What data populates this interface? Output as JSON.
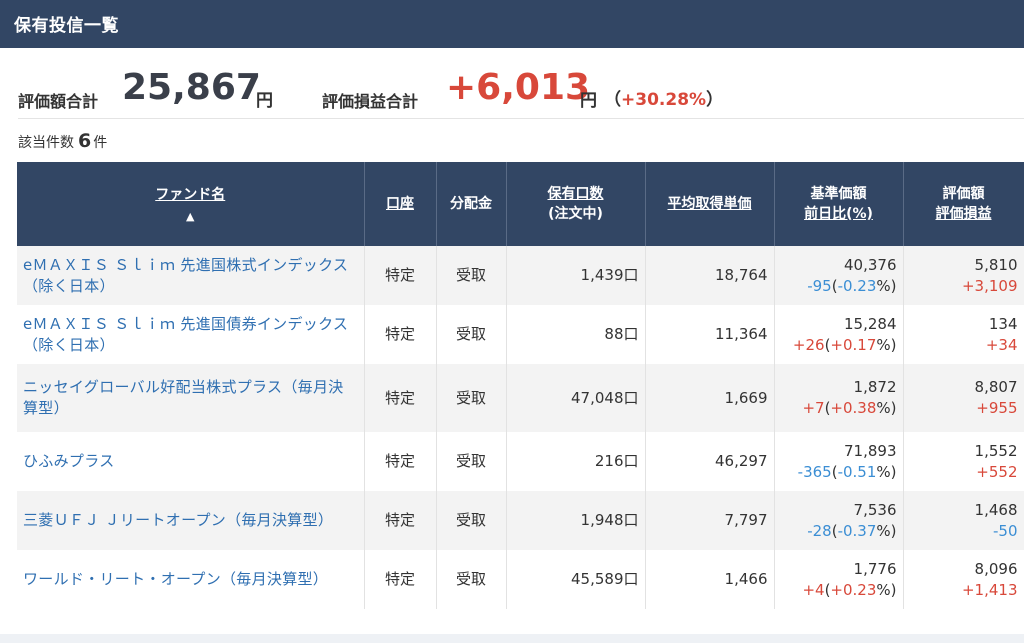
{
  "header": {
    "title": "保有投信一覧"
  },
  "summary": {
    "valuation_label": "評価額合計",
    "valuation_value": "25,867",
    "valuation_unit": "円",
    "pl_label": "評価損益合計",
    "pl_value": "+6,013",
    "pl_unit": "円",
    "pl_pct_open": "（",
    "pl_pct": "+30.28%",
    "pl_pct_close": "）"
  },
  "count": {
    "label": "該当件数",
    "value": "6",
    "unit": "件"
  },
  "table": {
    "headers": {
      "fund_name": "ファンド名",
      "sort_indicator": "▲",
      "account": "口座",
      "distribution": "分配金",
      "units_1": "保有口数",
      "units_2": "(注文中)",
      "avg_cost": "平均取得単価",
      "nav_1": "基準価額",
      "nav_2": "前日比(%)",
      "val_1": "評価額",
      "val_2": "評価損益"
    },
    "rows": [
      {
        "name": "eＭＡＸＩＳ Ｓｌｉｍ 先進国株式インデックス（除く日本）",
        "account": "特定",
        "distribution": "受取",
        "units": "1,439口",
        "avg_cost": "18,764",
        "nav": "40,376",
        "nav_change": "-95",
        "nav_pct_open": "(",
        "nav_pct": "-0.23",
        "nav_pct_close": "%)",
        "valuation": "5,810",
        "pl": "+3,109",
        "change_sign": "neg",
        "pl_sign": "pos"
      },
      {
        "name": "eＭＡＸＩＳ Ｓｌｉｍ 先進国債券インデックス（除く日本）",
        "account": "特定",
        "distribution": "受取",
        "units": "88口",
        "avg_cost": "11,364",
        "nav": "15,284",
        "nav_change": "+26",
        "nav_pct_open": "(",
        "nav_pct": "+0.17",
        "nav_pct_close": "%)",
        "valuation": "134",
        "pl": "+34",
        "change_sign": "pos",
        "pl_sign": "pos"
      },
      {
        "name": "ニッセイグローバル好配当株式プラス（毎月決算型）",
        "account": "特定",
        "distribution": "受取",
        "units": "47,048口",
        "avg_cost": "1,669",
        "nav": "1,872",
        "nav_change": "+7",
        "nav_pct_open": "(",
        "nav_pct": "+0.38",
        "nav_pct_close": "%)",
        "valuation": "8,807",
        "pl": "+955",
        "change_sign": "pos",
        "pl_sign": "pos"
      },
      {
        "name": "ひふみプラス",
        "account": "特定",
        "distribution": "受取",
        "units": "216口",
        "avg_cost": "46,297",
        "nav": "71,893",
        "nav_change": "-365",
        "nav_pct_open": "(",
        "nav_pct": "-0.51",
        "nav_pct_close": "%)",
        "valuation": "1,552",
        "pl": "+552",
        "change_sign": "neg",
        "pl_sign": "pos"
      },
      {
        "name": "三菱ＵＦＪ Ｊリートオープン（毎月決算型）",
        "account": "特定",
        "distribution": "受取",
        "units": "1,948口",
        "avg_cost": "7,797",
        "nav": "7,536",
        "nav_change": "-28",
        "nav_pct_open": "(",
        "nav_pct": "-0.37",
        "nav_pct_close": "%)",
        "valuation": "1,468",
        "pl": "-50",
        "change_sign": "neg",
        "pl_sign": "neg"
      },
      {
        "name": "ワールド・リート・オープン（毎月決算型）",
        "account": "特定",
        "distribution": "受取",
        "units": "45,589口",
        "avg_cost": "1,466",
        "nav": "1,776",
        "nav_change": "+4",
        "nav_pct_open": "(",
        "nav_pct": "+0.23",
        "nav_pct_close": "%)",
        "valuation": "8,096",
        "pl": "+1,413",
        "change_sign": "pos",
        "pl_sign": "pos"
      }
    ]
  },
  "colors": {
    "header_bg": "#324664",
    "positive": "#d8483a",
    "negative": "#3b8ed4",
    "link": "#2f6fb1"
  }
}
